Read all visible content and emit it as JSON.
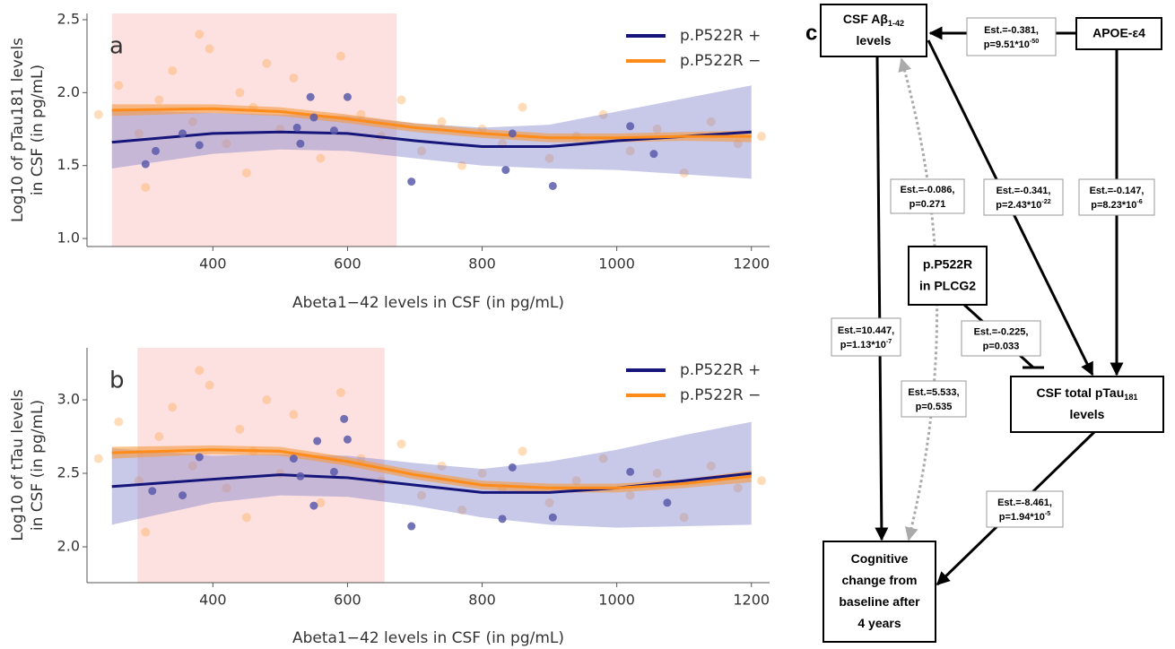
{
  "chart_data": [
    {
      "type": "line",
      "panel_label": "a",
      "x_label": "Abeta1−42 levels in CSF (in pg/mL)",
      "y_label": [
        "Log10 of pTau181 levels",
        "in CSF (in pg/mL)"
      ],
      "xlim": [
        213,
        1227
      ],
      "ylim": [
        0.945,
        2.543
      ],
      "xticks": [
        400,
        600,
        800,
        1000,
        1200
      ],
      "yticks": [
        {
          "value": 1.0,
          "label": "1.0"
        },
        1.5,
        {
          "value": 2.0,
          "label": "2.0"
        },
        2.5
      ],
      "shaded_xrange": [
        250,
        673
      ],
      "shade_color": "#fde0e0",
      "legend": "upper right",
      "x": [
        250,
        400,
        500,
        600,
        700,
        800,
        900,
        1000,
        1100,
        1200
      ],
      "series": [
        {
          "name": "p.P522R +",
          "color": "#15157a",
          "band_color": "#8585cc",
          "point_color": "#5a5aaa",
          "values": [
            1.66,
            1.72,
            1.73,
            1.72,
            1.67,
            1.63,
            1.63,
            1.67,
            1.7,
            1.73
          ],
          "lower": [
            1.48,
            1.58,
            1.61,
            1.6,
            1.55,
            1.5,
            1.48,
            1.47,
            1.44,
            1.41
          ],
          "upper": [
            1.88,
            1.86,
            1.85,
            1.84,
            1.79,
            1.76,
            1.78,
            1.87,
            1.96,
            2.05
          ],
          "points_x": [
            300,
            315,
            355,
            380,
            525,
            545,
            550,
            530,
            580,
            600,
            695,
            835,
            845,
            905,
            1020,
            1055
          ],
          "points_values": [
            1.51,
            1.6,
            1.72,
            1.64,
            1.76,
            1.97,
            1.83,
            1.65,
            1.74,
            1.97,
            1.39,
            1.47,
            1.72,
            1.36,
            1.77,
            1.58
          ]
        },
        {
          "name": "p.P522R −",
          "color": "#ff8c1a",
          "band_color": "#f59a40",
          "point_color": "#ffb266",
          "values": [
            1.88,
            1.89,
            1.87,
            1.82,
            1.76,
            1.72,
            1.69,
            1.69,
            1.7,
            1.7
          ],
          "lower": [
            1.84,
            1.86,
            1.84,
            1.79,
            1.73,
            1.69,
            1.66,
            1.66,
            1.67,
            1.66
          ],
          "upper": [
            1.92,
            1.92,
            1.9,
            1.85,
            1.79,
            1.75,
            1.72,
            1.72,
            1.73,
            1.74
          ],
          "points_x": [
            230,
            260,
            290,
            320,
            340,
            370,
            395,
            420,
            440,
            460,
            480,
            500,
            520,
            560,
            590,
            620,
            650,
            680,
            710,
            740,
            770,
            800,
            830,
            860,
            900,
            940,
            980,
            1020,
            1060,
            1100,
            1140,
            1180,
            1215,
            450,
            380,
            300
          ],
          "points_values": [
            1.85,
            2.05,
            1.72,
            1.95,
            2.15,
            1.8,
            2.3,
            1.65,
            2.0,
            1.9,
            2.2,
            1.75,
            2.1,
            1.55,
            2.25,
            1.85,
            1.7,
            1.95,
            1.6,
            1.8,
            1.5,
            1.75,
            1.65,
            1.9,
            1.55,
            1.7,
            1.85,
            1.6,
            1.75,
            1.45,
            1.8,
            1.65,
            1.7,
            1.45,
            2.4,
            1.35
          ]
        }
      ]
    },
    {
      "type": "line",
      "panel_label": "b",
      "x_label": "Abeta1−42 levels in CSF (in pg/mL)",
      "y_label": [
        "Log10 of tTau levels",
        "in CSF (in pg/mL)"
      ],
      "xlim": [
        213,
        1227
      ],
      "ylim": [
        1.756,
        3.354
      ],
      "xticks": [
        400,
        600,
        800,
        1000,
        1200
      ],
      "yticks": [
        {
          "value": 2.0,
          "label": "2.0"
        },
        2.5,
        {
          "value": 3.0,
          "label": "3.0"
        }
      ],
      "shaded_xrange": [
        288,
        655
      ],
      "shade_color": "#fde0e0",
      "legend": "upper right",
      "x": [
        250,
        400,
        500,
        600,
        700,
        800,
        900,
        1000,
        1100,
        1200
      ],
      "series": [
        {
          "name": "p.P522R +",
          "color": "#15157a",
          "band_color": "#8585cc",
          "point_color": "#5a5aaa",
          "values": [
            2.41,
            2.46,
            2.49,
            2.47,
            2.42,
            2.37,
            2.37,
            2.4,
            2.45,
            2.5
          ],
          "lower": [
            2.15,
            2.3,
            2.35,
            2.34,
            2.28,
            2.2,
            2.15,
            2.13,
            2.14,
            2.15
          ],
          "upper": [
            2.67,
            2.62,
            2.63,
            2.62,
            2.57,
            2.53,
            2.58,
            2.66,
            2.76,
            2.85
          ],
          "points_x": [
            310,
            355,
            380,
            520,
            530,
            550,
            555,
            580,
            595,
            600,
            695,
            830,
            845,
            905,
            1020,
            1075
          ],
          "points_values": [
            2.38,
            2.35,
            2.61,
            2.6,
            2.48,
            2.28,
            2.72,
            2.51,
            2.87,
            2.73,
            2.14,
            2.19,
            2.54,
            2.2,
            2.51,
            2.3
          ]
        },
        {
          "name": "p.P522R −",
          "color": "#ff8c1a",
          "band_color": "#f59a40",
          "point_color": "#ffb266",
          "values": [
            2.64,
            2.66,
            2.65,
            2.58,
            2.49,
            2.42,
            2.4,
            2.4,
            2.43,
            2.48
          ],
          "lower": [
            2.6,
            2.63,
            2.62,
            2.55,
            2.46,
            2.39,
            2.37,
            2.37,
            2.4,
            2.44
          ],
          "upper": [
            2.68,
            2.69,
            2.68,
            2.61,
            2.52,
            2.45,
            2.43,
            2.43,
            2.46,
            2.52
          ],
          "points_x": [
            230,
            260,
            290,
            320,
            340,
            370,
            395,
            420,
            440,
            460,
            480,
            500,
            520,
            560,
            590,
            620,
            650,
            680,
            710,
            740,
            770,
            800,
            830,
            860,
            900,
            940,
            980,
            1020,
            1060,
            1100,
            1140,
            1180,
            1215,
            450,
            380,
            300
          ],
          "points_values": [
            2.6,
            2.85,
            2.45,
            2.75,
            2.95,
            2.55,
            3.1,
            2.4,
            2.8,
            2.65,
            3.0,
            2.5,
            2.9,
            2.3,
            3.05,
            2.6,
            2.45,
            2.7,
            2.35,
            2.55,
            2.25,
            2.5,
            2.4,
            2.65,
            2.3,
            2.45,
            2.6,
            2.35,
            2.5,
            2.2,
            2.55,
            2.4,
            2.45,
            2.2,
            3.2,
            2.1
          ]
        }
      ]
    }
  ],
  "diagram": {
    "panel_label": "c",
    "nodes": [
      {
        "lines": [
          [
            {
              "text": "CSF Aβ"
            },
            {
              "text": "1-42",
              "sub": true
            }
          ],
          [
            {
              "text": "levels"
            }
          ]
        ]
      },
      {
        "lines": [
          [
            {
              "text": "APOE-ε4"
            }
          ]
        ]
      },
      {
        "lines": [
          [
            {
              "text": "p.P522R"
            }
          ],
          [
            {
              "text": "in PLCG2"
            }
          ]
        ]
      },
      {
        "lines": [
          [
            {
              "text": "CSF total pTau"
            },
            {
              "text": "181",
              "sub": true
            }
          ],
          [
            {
              "text": "levels"
            }
          ]
        ]
      },
      {
        "lines": [
          [
            {
              "text": "Cognitive"
            }
          ],
          [
            {
              "text": "change from"
            }
          ],
          [
            {
              "text": "baseline after"
            }
          ],
          [
            {
              "text": "4 years"
            }
          ]
        ]
      }
    ],
    "edges": [
      {
        "lines": [
          [
            {
              "text": "Est.=-0.381,"
            }
          ],
          [
            {
              "text": "p=9.51*10"
            },
            {
              "text": "-50",
              "sup": true
            }
          ]
        ]
      },
      {
        "lines": [
          [
            {
              "text": "Est.=-0.086,"
            }
          ],
          [
            {
              "text": "p=0.271"
            }
          ]
        ]
      },
      {
        "lines": [
          [
            {
              "text": "Est.=-0.341,"
            }
          ],
          [
            {
              "text": "p=2.43*10"
            },
            {
              "text": "-22",
              "sup": true
            }
          ]
        ]
      },
      {
        "lines": [
          [
            {
              "text": "Est.=-0.147,"
            }
          ],
          [
            {
              "text": "p=8.23*10"
            },
            {
              "text": "-6",
              "sup": true
            }
          ]
        ]
      },
      {
        "lines": [
          [
            {
              "text": "Est.=10.447,"
            }
          ],
          [
            {
              "text": "p=1.13*10"
            },
            {
              "text": "-7",
              "sup": true
            }
          ]
        ]
      },
      {
        "lines": [
          [
            {
              "text": "Est.=-0.225,"
            }
          ],
          [
            {
              "text": "p=0.033"
            }
          ]
        ]
      },
      {
        "lines": [
          [
            {
              "text": "Est.=5.533,"
            }
          ],
          [
            {
              "text": "p=0.535"
            }
          ]
        ]
      },
      {
        "lines": [
          [
            {
              "text": "Est.=-8.461,"
            }
          ],
          [
            {
              "text": "p=1.94*10"
            },
            {
              "text": "-5",
              "sup": true
            }
          ]
        ]
      }
    ]
  }
}
